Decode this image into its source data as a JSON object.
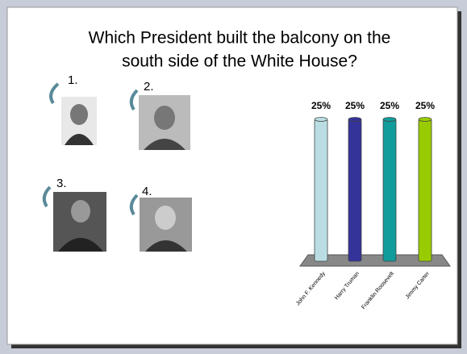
{
  "chart_data": {
    "type": "bar",
    "title": [
      "Which President built the balcony on the",
      "south side of the White House?"
    ],
    "categories": [
      "John F. Kennedy",
      "Harry Truman",
      "Franklin Roosevelt",
      "Jimmy Carter"
    ],
    "values": [
      25,
      25,
      25,
      25
    ],
    "value_labels": [
      "25%",
      "25%",
      "25%",
      "25%"
    ],
    "colors": [
      "#b9dde2",
      "#333399",
      "#119c9c",
      "#99cc00"
    ]
  },
  "slide": {
    "option_numbers": [
      "1.",
      "2.",
      "3.",
      "4."
    ]
  }
}
